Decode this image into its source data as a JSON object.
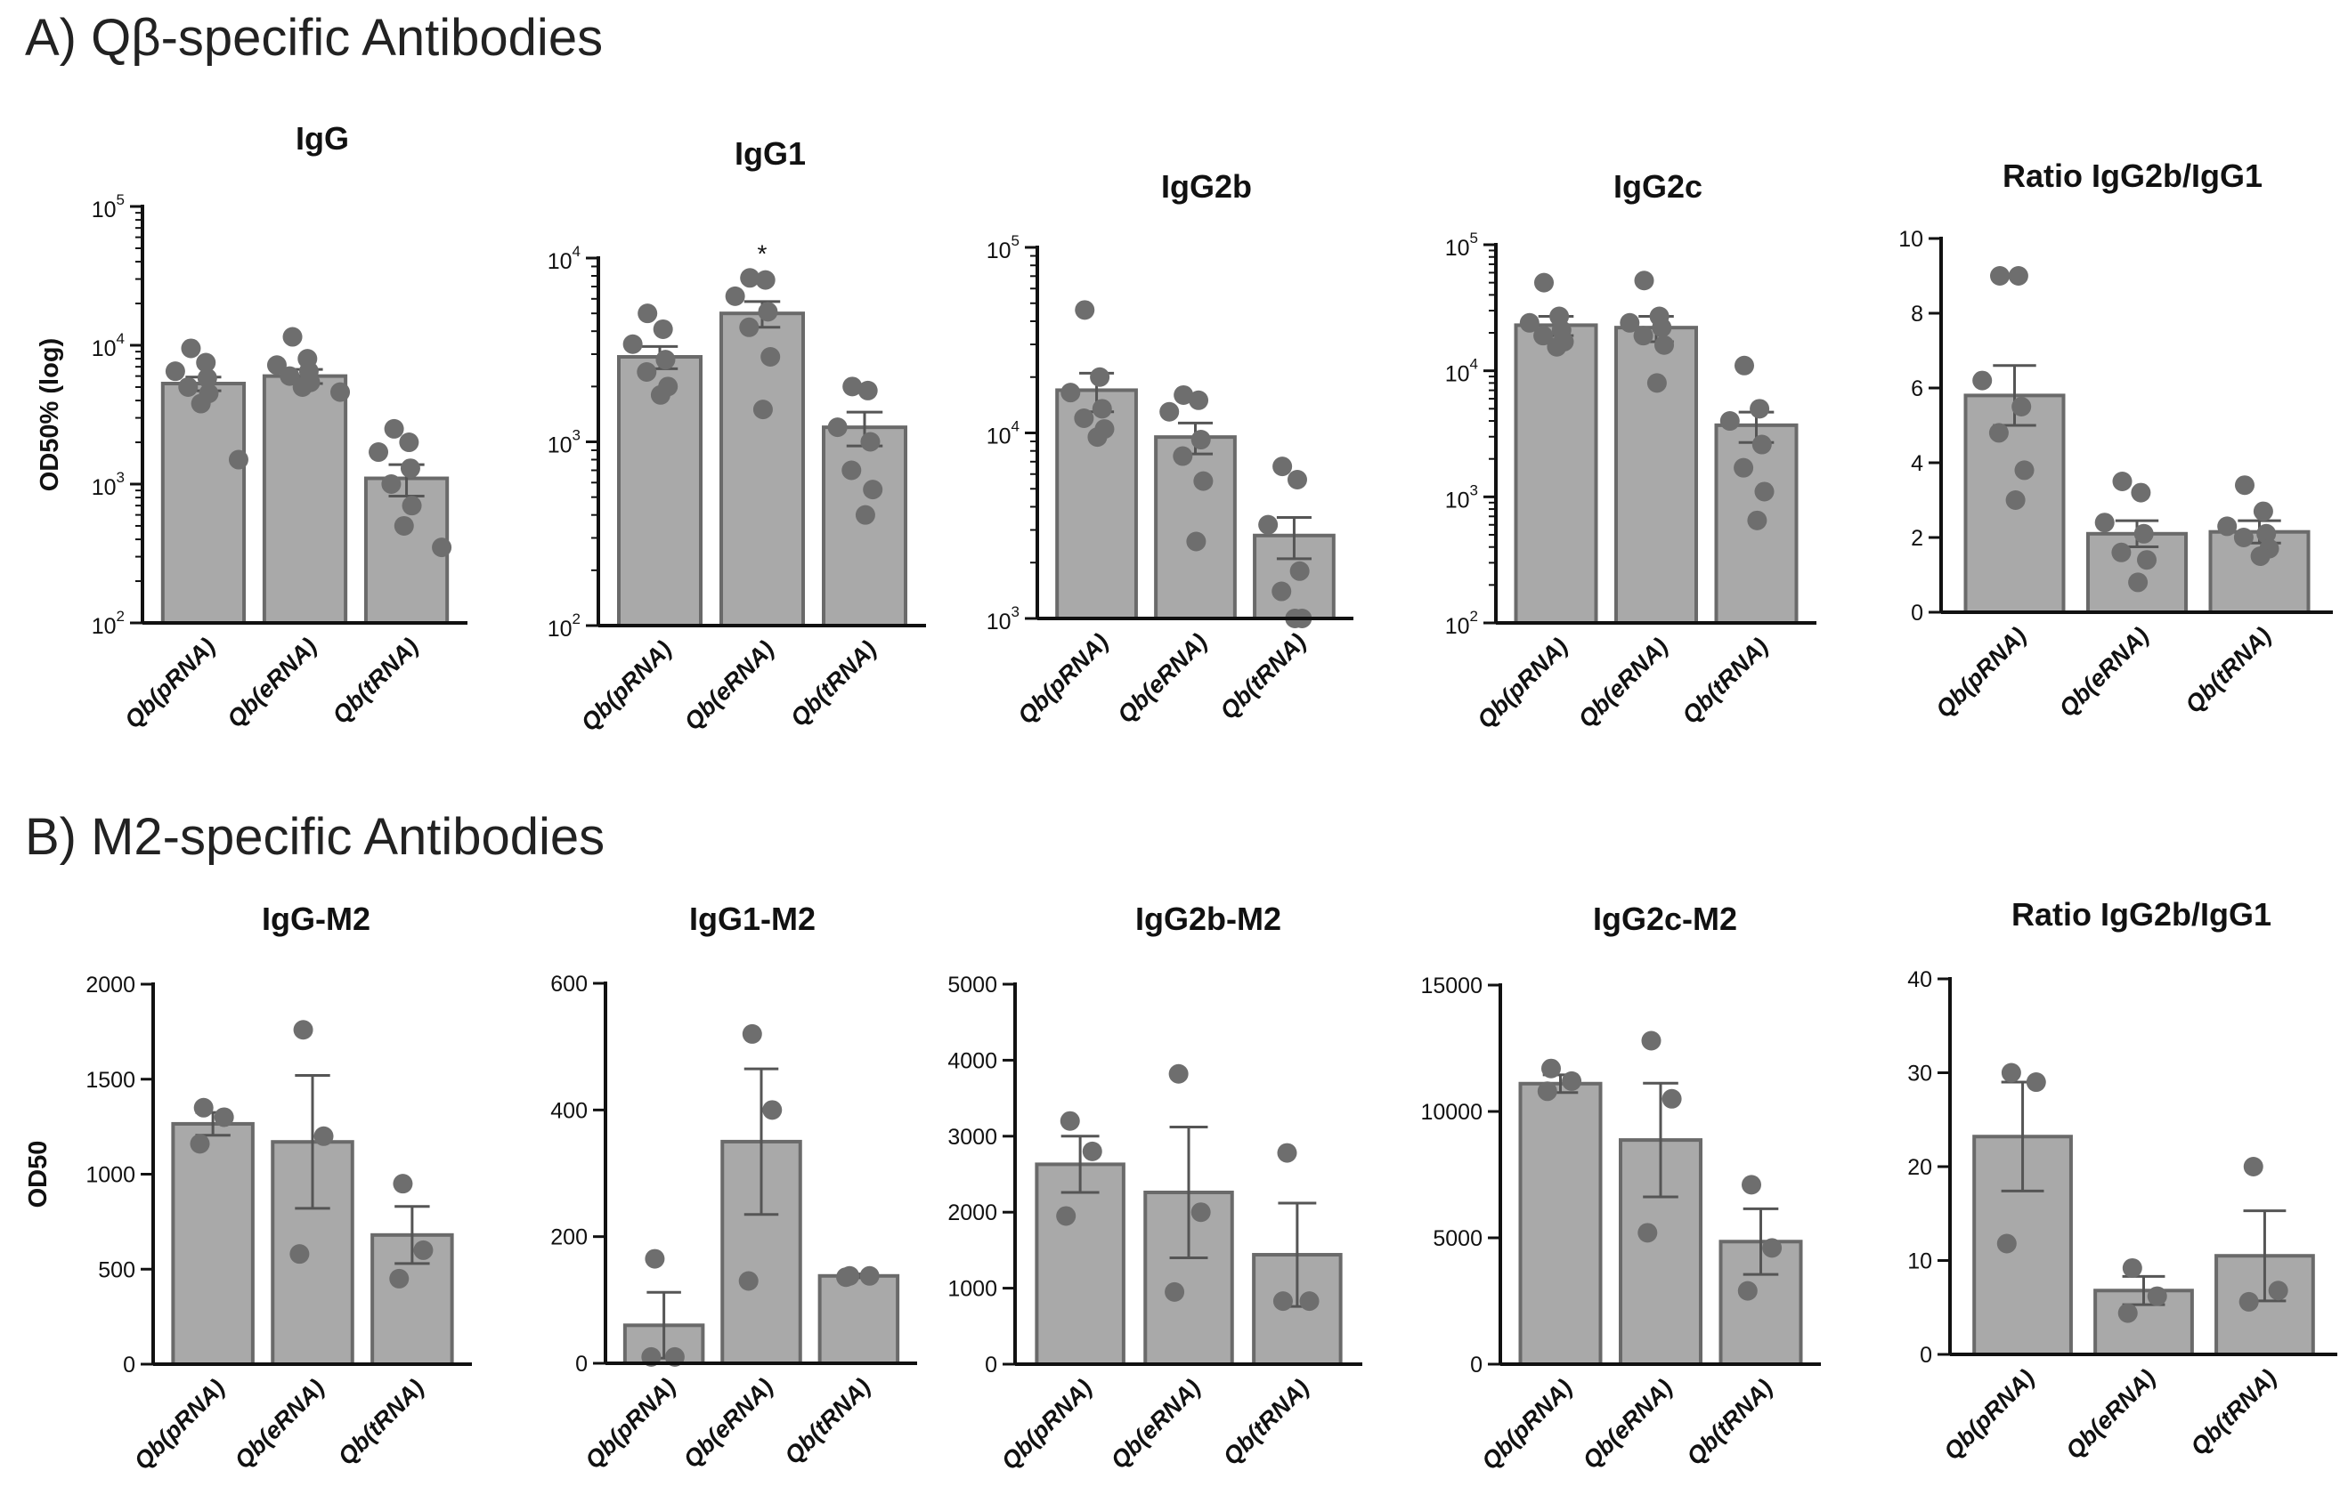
{
  "section_a_title": "A) Qβ-specific Antibodies",
  "section_b_title": "B) M2-specific Antibodies",
  "chart_data": [
    {
      "type": "bar",
      "title": "IgG",
      "ylabel": "OD50% (log)",
      "yscale": "log",
      "ylim": [
        100,
        100000
      ],
      "yticks": [
        {
          "base": "10",
          "exp": "2"
        },
        {
          "base": "10",
          "exp": "3"
        },
        {
          "base": "10",
          "exp": "4"
        },
        {
          "base": "10",
          "exp": "5"
        }
      ],
      "categories": [
        "Qb(pRNA)",
        "Qb(eRNA)",
        "Qb(tRNA)"
      ],
      "values": [
        5300,
        6000,
        1100
      ],
      "sem": [
        600,
        700,
        280
      ],
      "points": [
        [
          9500,
          7500,
          6500,
          5800,
          5000,
          4500,
          3800,
          1500
        ],
        [
          11500,
          8000,
          7200,
          6500,
          6000,
          5400,
          5000,
          4600
        ],
        [
          2500,
          2000,
          1700,
          1300,
          1000,
          700,
          500,
          350
        ]
      ],
      "annotations": []
    },
    {
      "type": "bar",
      "title": "IgG1",
      "ylabel": "",
      "yscale": "log",
      "ylim": [
        100,
        10000
      ],
      "yticks": [
        {
          "base": "10",
          "exp": "2"
        },
        {
          "base": "10",
          "exp": "3"
        },
        {
          "base": "10",
          "exp": "4"
        }
      ],
      "categories": [
        "Qb(pRNA)",
        "Qb(eRNA)",
        "Qb(tRNA)"
      ],
      "values": [
        2900,
        5000,
        1200
      ],
      "sem": [
        400,
        800,
        250
      ],
      "points": [
        [
          5000,
          4100,
          3400,
          2800,
          2400,
          2000,
          1800
        ],
        [
          7800,
          7600,
          6200,
          5100,
          4200,
          2900,
          1500
        ],
        [
          2000,
          1900,
          1200,
          1000,
          700,
          550,
          400
        ]
      ],
      "annotations": [
        {
          "text": "*",
          "category": 1
        }
      ]
    },
    {
      "type": "bar",
      "title": "IgG2b",
      "ylabel": "",
      "yscale": "log",
      "ylim": [
        1000,
        100000
      ],
      "yticks": [
        {
          "base": "10",
          "exp": "3"
        },
        {
          "base": "10",
          "exp": "4"
        },
        {
          "base": "10",
          "exp": "5"
        }
      ],
      "categories": [
        "Qb(pRNA)",
        "Qb(eRNA)",
        "Qb(tRNA)"
      ],
      "values": [
        17000,
        9500,
        2800
      ],
      "sem": [
        4000,
        1800,
        700
      ],
      "points": [
        [
          46000,
          20000,
          16500,
          13500,
          12000,
          10500,
          9500
        ],
        [
          16000,
          15000,
          13000,
          9200,
          7500,
          5500,
          2600
        ],
        [
          6600,
          5600,
          3200,
          1800,
          1400,
          1000,
          1000
        ]
      ],
      "annotations": []
    },
    {
      "type": "bar",
      "title": "IgG2c",
      "ylabel": "",
      "yscale": "log",
      "ylim": [
        100,
        100000
      ],
      "yticks": [
        {
          "base": "10",
          "exp": "2"
        },
        {
          "base": "10",
          "exp": "3"
        },
        {
          "base": "10",
          "exp": "4"
        },
        {
          "base": "10",
          "exp": "5"
        }
      ],
      "categories": [
        "Qb(pRNA)",
        "Qb(eRNA)",
        "Qb(tRNA)"
      ],
      "values": [
        23000,
        22000,
        3700
      ],
      "sem": [
        4000,
        5000,
        1000
      ],
      "points": [
        [
          50000,
          27000,
          24000,
          21000,
          19000,
          17000,
          15500
        ],
        [
          52000,
          27000,
          24000,
          22000,
          19000,
          16000,
          8000
        ],
        [
          11000,
          5000,
          4000,
          2600,
          1700,
          1100,
          650
        ]
      ],
      "annotations": []
    },
    {
      "type": "bar",
      "title": "Ratio IgG2b/IgG1",
      "ylabel": "",
      "yscale": "linear",
      "ylim": [
        0,
        10
      ],
      "yticks": [
        "0",
        "2",
        "4",
        "6",
        "8",
        "10"
      ],
      "categories": [
        "Qb(pRNA)",
        "Qb(eRNA)",
        "Qb(tRNA)"
      ],
      "values": [
        5.8,
        2.1,
        2.15
      ],
      "sem": [
        0.8,
        0.35,
        0.3
      ],
      "points": [
        [
          9.0,
          9.0,
          6.2,
          5.5,
          4.8,
          3.8,
          3.0
        ],
        [
          3.5,
          3.2,
          2.4,
          2.1,
          1.6,
          1.4,
          0.8
        ],
        [
          3.4,
          2.7,
          2.3,
          2.1,
          2.0,
          1.7,
          1.5
        ]
      ],
      "annotations": []
    },
    {
      "type": "bar",
      "title": "IgG-M2",
      "ylabel": "OD50",
      "yscale": "linear",
      "ylim": [
        0,
        2000
      ],
      "yticks": [
        "0",
        "500",
        "1000",
        "1500",
        "2000"
      ],
      "categories": [
        "Qb(pRNA)",
        "Qb(eRNA)",
        "Qb(tRNA)"
      ],
      "values": [
        1265,
        1170,
        680
      ],
      "sem": [
        60,
        350,
        150
      ],
      "points": [
        [
          1350,
          1300,
          1160
        ],
        [
          1760,
          1200,
          580
        ],
        [
          950,
          600,
          450
        ]
      ],
      "annotations": []
    },
    {
      "type": "bar",
      "title": "IgG1-M2",
      "ylabel": "",
      "yscale": "linear",
      "ylim": [
        0,
        600
      ],
      "yticks": [
        "0",
        "200",
        "400",
        "600"
      ],
      "categories": [
        "Qb(pRNA)",
        "Qb(eRNA)",
        "Qb(tRNA)"
      ],
      "values": [
        60,
        350,
        138
      ],
      "sem": [
        52,
        115,
        3
      ],
      "points": [
        [
          165,
          10,
          10
        ],
        [
          520,
          400,
          130
        ],
        [
          138,
          138,
          136
        ]
      ],
      "annotations": []
    },
    {
      "type": "bar",
      "title": "IgG2b-M2",
      "ylabel": "",
      "yscale": "linear",
      "ylim": [
        0,
        5000
      ],
      "yticks": [
        "0",
        "1000",
        "2000",
        "3000",
        "4000",
        "5000"
      ],
      "categories": [
        "Qb(pRNA)",
        "Qb(eRNA)",
        "Qb(tRNA)"
      ],
      "values": [
        2630,
        2260,
        1440
      ],
      "sem": [
        370,
        860,
        680
      ],
      "points": [
        [
          3200,
          2800,
          1950
        ],
        [
          3820,
          2000,
          950
        ],
        [
          2780,
          830,
          830
        ]
      ],
      "annotations": []
    },
    {
      "type": "bar",
      "title": "IgG2c-M2",
      "ylabel": "",
      "yscale": "linear",
      "ylim": [
        0,
        15000
      ],
      "yticks": [
        "0",
        "5000",
        "10000",
        "15000"
      ],
      "categories": [
        "Qb(pRNA)",
        "Qb(eRNA)",
        "Qb(tRNA)"
      ],
      "values": [
        11100,
        8870,
        4850
      ],
      "sem": [
        350,
        2250,
        1300
      ],
      "points": [
        [
          11700,
          11200,
          10800
        ],
        [
          12800,
          10500,
          5200
        ],
        [
          7100,
          4600,
          2900
        ]
      ],
      "annotations": []
    },
    {
      "type": "bar",
      "title": "Ratio IgG2b/IgG1",
      "ylabel": "",
      "yscale": "linear",
      "ylim": [
        0,
        40
      ],
      "yticks": [
        "0",
        "10",
        "20",
        "30",
        "40"
      ],
      "categories": [
        "Qb(pRNA)",
        "Qb(eRNA)",
        "Qb(tRNA)"
      ],
      "values": [
        23.2,
        6.8,
        10.5
      ],
      "sem": [
        5.8,
        1.5,
        4.8
      ],
      "points": [
        [
          30,
          29,
          11.8
        ],
        [
          9.2,
          6.2,
          4.4
        ],
        [
          20,
          6.8,
          5.6
        ]
      ],
      "annotations": []
    }
  ]
}
